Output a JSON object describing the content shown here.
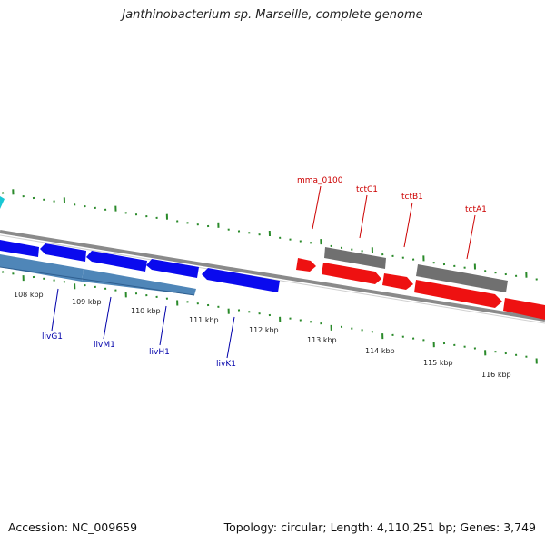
{
  "title": "Janthinobacterium sp. Marseille, complete genome",
  "footer": {
    "accession": "Accession: NC_009659",
    "summary": "Topology: circular; Length: 4,110,251 bp; Genes: 3,749"
  },
  "scale_labels": [
    "108 kbp",
    "109 kbp",
    "110 kbp",
    "111 kbp",
    "112 kbp",
    "113 kbp",
    "114 kbp",
    "115 kbp",
    "116 kbp"
  ],
  "gene_labels": {
    "red": [
      "mma_0100",
      "tctC1",
      "tctB1",
      "tctA1"
    ],
    "blue": [
      "livG1",
      "livM1",
      "livH1",
      "livK1"
    ]
  },
  "colors": {
    "forward_cds": "#ee1111",
    "reverse_cds": "#0a0aee",
    "gene_light": "#4f86b8",
    "gene_gray": "#707070",
    "backbone": "#8a8a8a",
    "ticks": "#2a8a2a",
    "cyan_marker": "#19c7d4"
  }
}
